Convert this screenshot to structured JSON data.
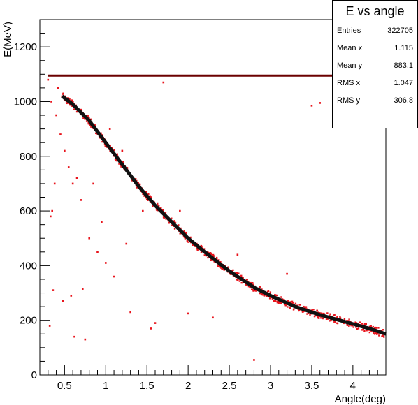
{
  "chart_data": {
    "type": "scatter",
    "title": "E vs angle",
    "xlabel": "Angle(deg)",
    "ylabel": "E(MeV)",
    "xlim": [
      0.2,
      4.4
    ],
    "ylim": [
      0,
      1300
    ],
    "xticks": [
      "0.5",
      "1",
      "1.5",
      "2",
      "2.5",
      "3",
      "3.5",
      "4"
    ],
    "xtick_values": [
      0.5,
      1,
      1.5,
      2,
      2.5,
      3,
      3.5,
      4
    ],
    "yticks": [
      "0",
      "200",
      "400",
      "600",
      "800",
      "1000",
      "1200"
    ],
    "ytick_values": [
      0,
      200,
      400,
      600,
      800,
      1000,
      1200
    ],
    "grid": false,
    "legend": "none",
    "series": [
      {
        "name": "",
        "style": "dense band",
        "x": [
          0.47,
          0.6,
          0.8,
          1.0,
          1.2,
          1.4,
          1.6,
          1.8,
          2.0,
          2.2,
          2.5,
          2.8,
          3.0,
          3.3,
          3.6,
          3.9,
          4.2,
          4.4
        ],
        "y": [
          1020,
          990,
          930,
          850,
          770,
          690,
          620,
          560,
          500,
          450,
          380,
          320,
          290,
          250,
          220,
          195,
          170,
          150
        ]
      },
      {
        "name": "",
        "style": "horizontal line",
        "x": [
          0.3,
          4.4
        ],
        "y": [
          1095,
          1095
        ]
      },
      {
        "name": "",
        "style": "scattered points",
        "x": [
          0.3,
          0.32,
          0.35,
          0.38,
          0.42,
          0.45,
          0.5,
          0.55,
          0.6,
          0.7,
          0.8,
          0.9,
          1.0,
          1.1,
          1.3,
          1.6,
          0.34,
          0.4,
          0.36,
          0.48,
          0.62,
          0.75,
          0.95,
          1.25,
          1.45,
          1.55,
          1.7,
          2.0,
          2.3,
          2.8,
          3.5,
          3.6,
          0.33,
          0.58,
          0.72,
          0.85,
          0.65,
          1.05,
          1.2,
          1.9,
          2.6,
          3.2
        ],
        "y": [
          1080,
          180,
          600,
          700,
          1050,
          880,
          820,
          760,
          700,
          640,
          500,
          450,
          410,
          360,
          230,
          190,
          1000,
          950,
          310,
          270,
          140,
          130,
          560,
          480,
          600,
          170,
          1070,
          225,
          210,
          55,
          985,
          995,
          580,
          290,
          315,
          700,
          720,
          900,
          820,
          600,
          440,
          370
        ]
      }
    ],
    "stats": {
      "title": "E vs angle",
      "rows": [
        {
          "label": "Entries",
          "value": "322705"
        },
        {
          "label": "Mean x",
          "value": "1.115"
        },
        {
          "label": "Mean y",
          "value": "883.1"
        },
        {
          "label": "RMS x",
          "value": "1.047"
        },
        {
          "label": "RMS y",
          "value": "306.8"
        }
      ]
    },
    "colors": {
      "points": "#e8141c",
      "curve": "#111111",
      "line": "#6b0000"
    }
  }
}
